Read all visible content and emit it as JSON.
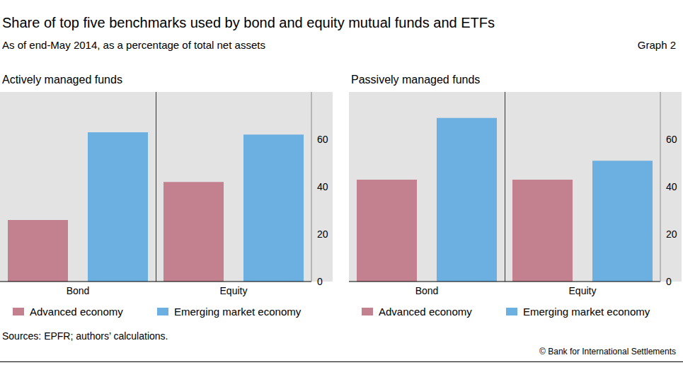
{
  "header": {
    "title": "Share of top five benchmarks used by bond and equity mutual funds and ETFs",
    "subtitle": "As of end-May 2014, as a percentage of total net assets",
    "graph_label": "Graph 2"
  },
  "chart_data": [
    {
      "type": "bar",
      "title": "Actively managed funds",
      "categories": [
        "Bond",
        "Equity"
      ],
      "series": [
        {
          "name": "Advanced economy",
          "color": "#c3808f",
          "values": [
            26,
            42
          ]
        },
        {
          "name": "Emerging market economy",
          "color": "#6cafe1",
          "values": [
            63,
            62
          ]
        }
      ],
      "ylim": [
        0,
        80
      ],
      "yticks": [
        0,
        20,
        40,
        60
      ],
      "grid": false,
      "legend": "bottom"
    },
    {
      "type": "bar",
      "title": "Passively managed funds",
      "categories": [
        "Bond",
        "Equity"
      ],
      "series": [
        {
          "name": "Advanced economy",
          "color": "#c3808f",
          "values": [
            43,
            43
          ]
        },
        {
          "name": "Emerging market economy",
          "color": "#6cafe1",
          "values": [
            69,
            51
          ]
        }
      ],
      "ylim": [
        0,
        80
      ],
      "yticks": [
        0,
        20,
        40,
        60
      ],
      "grid": false,
      "legend": "bottom"
    }
  ],
  "footer": {
    "sources": "Sources: EPFR; authors’ calculations.",
    "copyright": "© Bank for International Settlements"
  }
}
